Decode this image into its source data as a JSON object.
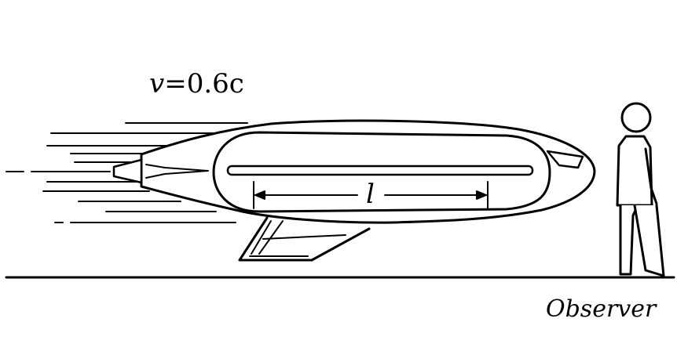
{
  "labels": {
    "velocity_var": "v",
    "velocity_rest": "=0.6c",
    "length": "l",
    "observer": "Observer"
  },
  "colors": {
    "ink": "#000000",
    "background": "#ffffff"
  },
  "icons": [
    "spaceship-icon",
    "person-icon",
    "motion-lines-icon"
  ]
}
